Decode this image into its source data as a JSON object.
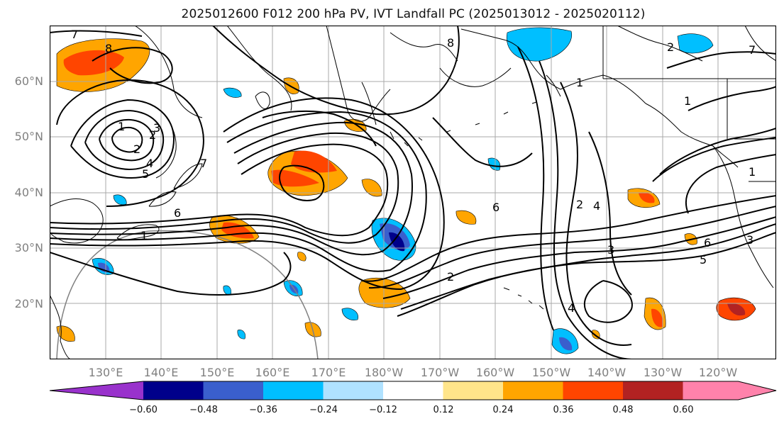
{
  "title": "2025012600 F012 200 hPa PV, IVT Landfall PC (2025013012 - 2025020112)",
  "map": {
    "lat_labels": [
      "60°N",
      "50°N",
      "40°N",
      "30°N",
      "20°N"
    ],
    "lon_labels": [
      "130°E",
      "140°E",
      "150°E",
      "160°E",
      "170°E",
      "180°W",
      "170°W",
      "160°W",
      "150°W",
      "140°W",
      "130°W",
      "120°W"
    ],
    "contour_labels": [
      "7",
      "8",
      "8",
      "1",
      "2",
      "2",
      "1",
      "1",
      "1",
      "2",
      "3",
      "4",
      "5",
      "6",
      "1",
      "7",
      "6",
      "2",
      "4",
      "3",
      "4",
      "2",
      "5",
      "6",
      "7",
      "3"
    ]
  },
  "colorbar": {
    "tick_labels": [
      "−0.60",
      "−0.48",
      "−0.36",
      "−0.24",
      "−0.12",
      "0.12",
      "0.24",
      "0.36",
      "0.48",
      "0.60"
    ],
    "colors": [
      "#9932cc",
      "#00008b",
      "#3a5fcd",
      "#00bfff",
      "#b0e2ff",
      "#ffffff",
      "#ffe58a",
      "#ffa500",
      "#ff4500",
      "#b22222",
      "#ff82ab"
    ]
  }
}
